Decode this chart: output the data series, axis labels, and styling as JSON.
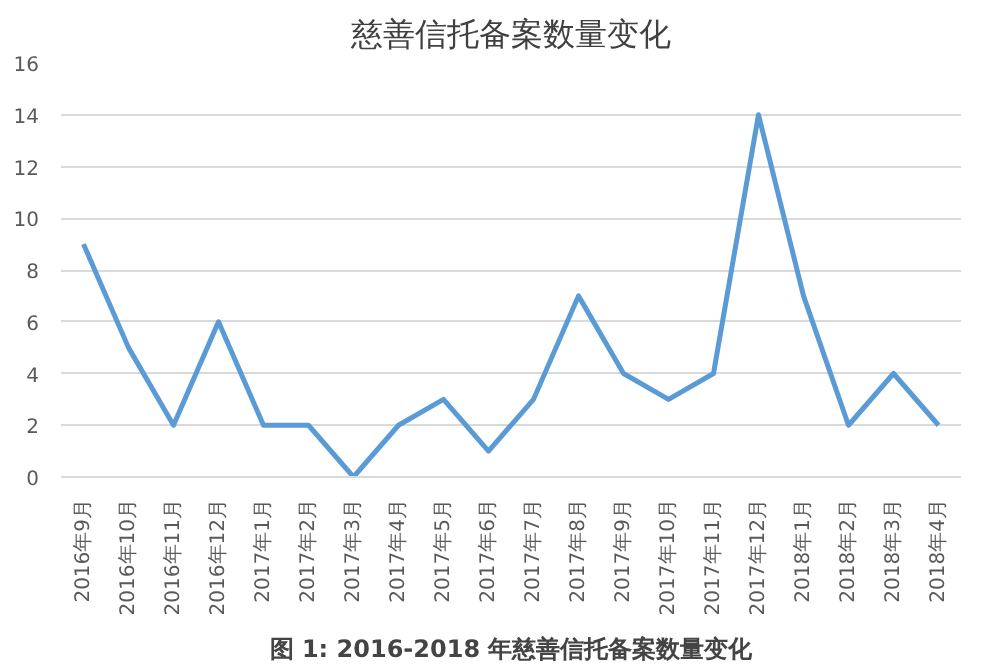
{
  "chart_data": {
    "type": "line",
    "title": "慈善信托备案数量变化",
    "categories": [
      "2016年9月",
      "2016年10月",
      "2016年11月",
      "2016年12月",
      "2017年1月",
      "2017年2月",
      "2017年3月",
      "2017年4月",
      "2017年5月",
      "2017年6月",
      "2017年7月",
      "2017年8月",
      "2017年9月",
      "2017年10月",
      "2017年11月",
      "2017年12月",
      "2018年1月",
      "2018年2月",
      "2018年3月",
      "2018年4月"
    ],
    "series": [
      {
        "color": "#5b9bd5",
        "values": [
          9,
          5,
          2,
          6,
          2,
          2,
          0,
          2,
          3,
          1,
          3,
          7,
          4,
          3,
          4,
          14,
          7,
          2,
          4,
          2
        ]
      }
    ],
    "ylim": [
      0,
      16
    ],
    "yticks": [
      0,
      2,
      4,
      6,
      8,
      10,
      12,
      14,
      16
    ],
    "grid": "y",
    "marker": "none",
    "line_style": "solid",
    "annotations": [
      "图 1: 2016-2018 年慈善信托备案数量变化"
    ]
  }
}
